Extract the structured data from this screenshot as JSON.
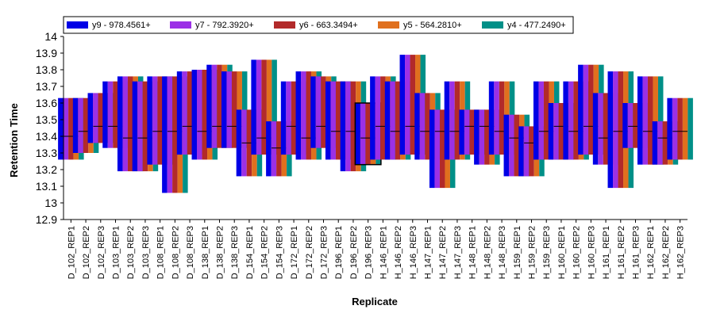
{
  "chart_data": {
    "type": "bar",
    "subtype": "floating-range",
    "xlabel": "Replicate",
    "ylabel": "Retention Time",
    "ylim": [
      12.9,
      14
    ],
    "yticks": [
      "12.9",
      "13",
      "13.1",
      "13.2",
      "13.3",
      "13.4",
      "13.5",
      "13.6",
      "13.7",
      "13.8",
      "13.9",
      "14"
    ],
    "grid": false,
    "legend_position": "top-left",
    "series": [
      {
        "name": "y9 - 978.4561+",
        "color": "#0000e6"
      },
      {
        "name": "y7 - 792.3920+",
        "color": "#9b30e6"
      },
      {
        "name": "y6 - 663.3494+",
        "color": "#b22a2a"
      },
      {
        "name": "y5 - 564.2810+",
        "color": "#e0701e"
      },
      {
        "name": "y4 - 477.2490+",
        "color": "#009088"
      }
    ],
    "categories": [
      "D_102_REP1",
      "D_102_REP2",
      "D_102_REP3",
      "D_103_REP1",
      "D_103_REP2",
      "D_103_REP3",
      "D_108_REP1",
      "D_108_REP2",
      "D_108_REP3",
      "D_138_REP1",
      "D_138_REP2",
      "D_138_REP3",
      "D_154_REP1",
      "D_154_REP2",
      "D_154_REP3",
      "D_172_REP1",
      "D_172_REP2",
      "D_172_REP3",
      "D_196_REP1",
      "D_196_REP2",
      "D_196_REP3",
      "H_146_REP1",
      "H_146_REP2",
      "H_146_REP3",
      "H_147_REP1",
      "H_147_REP2",
      "H_147_REP3",
      "H_148_REP1",
      "H_148_REP2",
      "H_148_REP3",
      "H_159_REP1",
      "H_159_REP2",
      "H_159_REP3",
      "H_160_REP1",
      "H_160_REP2",
      "H_160_REP3",
      "H_161_REP1",
      "H_161_REP2",
      "H_161_REP3",
      "H_162_REP1",
      "H_162_REP2",
      "H_162_REP3"
    ],
    "ranges": [
      {
        "low": 13.26,
        "high": 13.63,
        "peak": 13.4
      },
      {
        "low": 13.3,
        "high": 13.63,
        "peak": 13.43
      },
      {
        "low": 13.36,
        "high": 13.66,
        "peak": 13.46
      },
      {
        "low": 13.33,
        "high": 13.73,
        "peak": 13.46
      },
      {
        "low": 13.19,
        "high": 13.76,
        "peak": 13.39
      },
      {
        "low": 13.19,
        "high": 13.73,
        "peak": 13.39
      },
      {
        "low": 13.23,
        "high": 13.76,
        "peak": 13.43
      },
      {
        "low": 13.06,
        "high": 13.76,
        "peak": 13.43
      },
      {
        "low": 13.29,
        "high": 13.79,
        "peak": 13.46
      },
      {
        "low": 13.26,
        "high": 13.8,
        "peak": 13.43
      },
      {
        "low": 13.33,
        "high": 13.83,
        "peak": 13.46
      },
      {
        "low": 13.33,
        "high": 13.79,
        "peak": 13.46
      },
      {
        "low": 13.16,
        "high": 13.56,
        "peak": 13.36
      },
      {
        "low": 13.29,
        "high": 13.86,
        "peak": 13.39
      },
      {
        "low": 13.16,
        "high": 13.49,
        "peak": 13.33
      },
      {
        "low": 13.29,
        "high": 13.73,
        "peak": 13.46
      },
      {
        "low": 13.26,
        "high": 13.79,
        "peak": 13.39
      },
      {
        "low": 13.33,
        "high": 13.76,
        "peak": 13.46
      },
      {
        "low": 13.26,
        "high": 13.73,
        "peak": 13.43
      },
      {
        "low": 13.19,
        "high": 13.73,
        "peak": 13.43
      },
      {
        "low": 13.23,
        "high": 13.6,
        "peak": 13.39
      },
      {
        "low": 13.26,
        "high": 13.76,
        "peak": 13.46
      },
      {
        "low": 13.26,
        "high": 13.73,
        "peak": 13.43
      },
      {
        "low": 13.29,
        "high": 13.89,
        "peak": 13.46
      },
      {
        "low": 13.26,
        "high": 13.66,
        "peak": 13.43
      },
      {
        "low": 13.09,
        "high": 13.56,
        "peak": 13.43
      },
      {
        "low": 13.26,
        "high": 13.73,
        "peak": 13.43
      },
      {
        "low": 13.29,
        "high": 13.56,
        "peak": 13.46
      },
      {
        "low": 13.23,
        "high": 13.56,
        "peak": 13.46
      },
      {
        "low": 13.29,
        "high": 13.73,
        "peak": 13.43
      },
      {
        "low": 13.16,
        "high": 13.53,
        "peak": 13.39
      },
      {
        "low": 13.16,
        "high": 13.46,
        "peak": 13.36
      },
      {
        "low": 13.26,
        "high": 13.73,
        "peak": 13.43
      },
      {
        "low": 13.26,
        "high": 13.6,
        "peak": 13.46
      },
      {
        "low": 13.26,
        "high": 13.73,
        "peak": 13.43
      },
      {
        "low": 13.29,
        "high": 13.83,
        "peak": 13.46
      },
      {
        "low": 13.23,
        "high": 13.66,
        "peak": 13.39
      },
      {
        "low": 13.09,
        "high": 13.79,
        "peak": 13.43
      },
      {
        "low": 13.33,
        "high": 13.6,
        "peak": 13.46
      },
      {
        "low": 13.23,
        "high": 13.76,
        "peak": 13.43
      },
      {
        "low": 13.23,
        "high": 13.49,
        "peak": 13.39
      },
      {
        "low": 13.26,
        "high": 13.63,
        "peak": 13.43
      }
    ],
    "highlighted_index": 20
  }
}
